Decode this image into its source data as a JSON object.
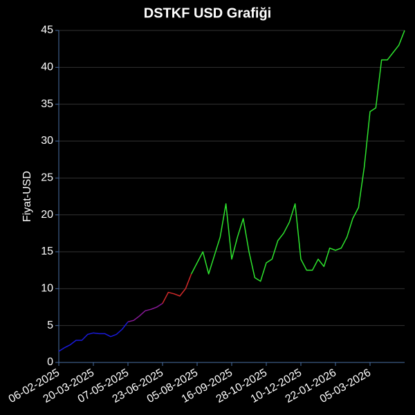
{
  "chart_data": {
    "type": "line",
    "title": "DSTKF USD Grafiği",
    "y_label": "Fiyat-USD",
    "categories": [
      "06-02-2025",
      null,
      null,
      null,
      null,
      null,
      "20-03-2025",
      null,
      null,
      null,
      null,
      null,
      "07-05-2025",
      null,
      null,
      null,
      null,
      null,
      "23-06-2025",
      null,
      null,
      null,
      null,
      null,
      "05-08-2025",
      null,
      null,
      null,
      null,
      null,
      "16-09-2025",
      null,
      null,
      null,
      null,
      null,
      "28-10-2025",
      null,
      null,
      null,
      null,
      null,
      "10-12-2025",
      null,
      null,
      null,
      null,
      null,
      "22-01-2026",
      null,
      null,
      null,
      null,
      null,
      "05-03-2026",
      null,
      null,
      null,
      null,
      null,
      null
    ],
    "series": [
      {
        "color": "#1a1adc",
        "values": [
          1.5,
          2.0,
          2.4,
          3.0,
          3.0,
          3.8,
          4.0,
          3.9,
          3.9,
          3.5,
          3.8,
          4.5,
          5.5,
          null,
          null,
          null,
          null,
          null,
          null,
          null,
          null,
          null,
          null,
          null,
          null,
          null,
          null,
          null,
          null,
          null,
          null,
          null,
          null,
          null,
          null,
          null,
          null,
          null,
          null,
          null,
          null,
          null,
          null,
          null,
          null,
          null,
          null,
          null,
          null,
          null,
          null,
          null,
          null,
          null,
          null,
          null,
          null,
          null,
          null,
          null,
          null
        ]
      },
      {
        "color": "#8a1a9a",
        "values": [
          null,
          null,
          null,
          null,
          null,
          null,
          null,
          null,
          null,
          null,
          null,
          null,
          5.5,
          5.7,
          6.3,
          7.0,
          7.2,
          7.5,
          8.0,
          null,
          null,
          null,
          null,
          null,
          null,
          null,
          null,
          null,
          null,
          null,
          null,
          null,
          null,
          null,
          null,
          null,
          null,
          null,
          null,
          null,
          null,
          null,
          null,
          null,
          null,
          null,
          null,
          null,
          null,
          null,
          null,
          null,
          null,
          null,
          null,
          null,
          null,
          null,
          null,
          null,
          null
        ]
      },
      {
        "color": "#d42a2a",
        "values": [
          null,
          null,
          null,
          null,
          null,
          null,
          null,
          null,
          null,
          null,
          null,
          null,
          null,
          null,
          null,
          null,
          null,
          null,
          8.0,
          9.5,
          9.3,
          9.0,
          10.0,
          12.0,
          null,
          null,
          null,
          null,
          null,
          null,
          null,
          null,
          null,
          null,
          null,
          null,
          null,
          null,
          null,
          null,
          null,
          null,
          null,
          null,
          null,
          null,
          null,
          null,
          null,
          null,
          null,
          null,
          null,
          null,
          null,
          null,
          null,
          null,
          null,
          null,
          null
        ]
      },
      {
        "color": "#2ee62e",
        "values": [
          null,
          null,
          null,
          null,
          null,
          null,
          null,
          null,
          null,
          null,
          null,
          null,
          null,
          null,
          null,
          null,
          null,
          null,
          null,
          null,
          null,
          null,
          null,
          12.0,
          13.5,
          15.0,
          12.0,
          14.5,
          17.0,
          21.5,
          14.0,
          17.0,
          19.5,
          15.0,
          11.5,
          11.0,
          13.5,
          14.0,
          16.5,
          17.5,
          19.0,
          21.5,
          14.0,
          12.5,
          12.5,
          14.0,
          13.0,
          15.5,
          15.2,
          15.5,
          17.0,
          19.5,
          21.0,
          26.5,
          34.0,
          34.5,
          41.0,
          41.0,
          42.0,
          43.0,
          45.0
        ]
      }
    ],
    "ylim": [
      0,
      45
    ],
    "yticks": [
      0,
      5,
      10,
      15,
      20,
      25,
      30,
      35,
      40,
      45
    ],
    "grid": true
  }
}
